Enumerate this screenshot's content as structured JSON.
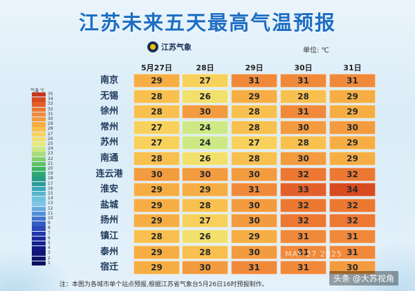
{
  "title": "江苏未来五天最高气温预报",
  "brand": "江苏气象",
  "unit_label": "单位: ℃",
  "legend": {
    "title": "气温 ℃",
    "ticks": [
      "35",
      "34",
      "33",
      "32",
      "31",
      "30",
      "29",
      "28",
      "27",
      "26",
      "25",
      "24",
      "23",
      "22",
      "21",
      "20",
      "19",
      "18",
      "17",
      "16",
      "15",
      "14",
      "13",
      "12",
      "11",
      "10",
      "9",
      "8",
      "7",
      "6",
      "5",
      "4",
      "3",
      "2",
      "1"
    ],
    "colors": [
      "#c9351c",
      "#d84a1f",
      "#e4602a",
      "#ec7832",
      "#f08a3a",
      "#f39b3f",
      "#f6ae44",
      "#f8c04e",
      "#f7d15c",
      "#f2e06c",
      "#e6ea7a",
      "#cde985",
      "#a9dd7b",
      "#85d06d",
      "#5fc262",
      "#3fb55f",
      "#2ea870",
      "#2a9d85",
      "#2c9c9c",
      "#3ba8b6",
      "#57b6cc",
      "#6ec3dc",
      "#7fc6e5",
      "#6aa9e0",
      "#548dd8",
      "#4273cf",
      "#355cc4",
      "#2a48b9",
      "#2237ab",
      "#1b2a9d",
      "#16208f",
      "#131982",
      "#121676",
      "#10136b",
      "#0e1060"
    ]
  },
  "chart_data": {
    "type": "table",
    "title": "江苏未来五天最高气温预报",
    "columns": [
      "5月27日",
      "28日",
      "29日",
      "30日",
      "31日"
    ],
    "rows": [
      {
        "city": "南京",
        "values": [
          29,
          27,
          31,
          31,
          31
        ]
      },
      {
        "city": "无锡",
        "values": [
          28,
          26,
          29,
          28,
          29
        ]
      },
      {
        "city": "徐州",
        "values": [
          28,
          30,
          28,
          31,
          29
        ]
      },
      {
        "city": "常州",
        "values": [
          27,
          24,
          28,
          30,
          30
        ]
      },
      {
        "city": "苏州",
        "values": [
          27,
          24,
          27,
          28,
          29
        ]
      },
      {
        "city": "南通",
        "values": [
          28,
          26,
          28,
          30,
          29
        ]
      },
      {
        "city": "连云港",
        "values": [
          30,
          30,
          30,
          32,
          32
        ]
      },
      {
        "city": "淮安",
        "values": [
          29,
          29,
          31,
          33,
          34
        ]
      },
      {
        "city": "盐城",
        "values": [
          29,
          28,
          30,
          32,
          32
        ]
      },
      {
        "city": "扬州",
        "values": [
          29,
          27,
          30,
          32,
          32
        ]
      },
      {
        "city": "镇江",
        "values": [
          28,
          26,
          29,
          31,
          31
        ]
      },
      {
        "city": "泰州",
        "values": [
          29,
          28,
          30,
          31,
          31
        ]
      },
      {
        "city": "宿迁",
        "values": [
          29,
          30,
          31,
          31,
          30
        ]
      }
    ]
  },
  "note": "注：本图为各城市单个站点预报,根据江苏省气象台5月26日16时预报制作。",
  "watermark": "头条 @大苏视角",
  "faint_text": "MAY 27 2025"
}
